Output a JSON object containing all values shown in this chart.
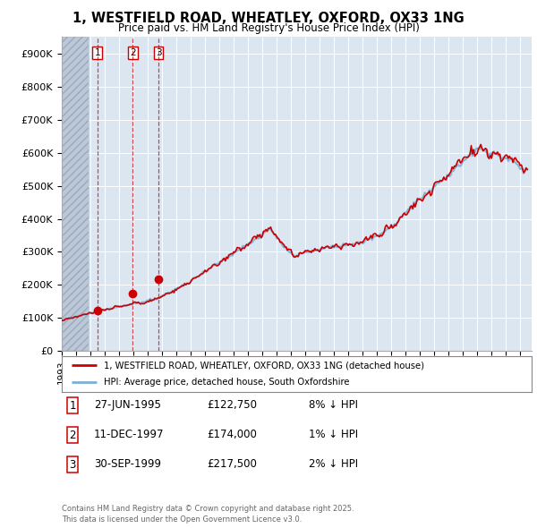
{
  "title_line1": "1, WESTFIELD ROAD, WHEATLEY, OXFORD, OX33 1NG",
  "title_line2": "Price paid vs. HM Land Registry's House Price Index (HPI)",
  "property_label": "1, WESTFIELD ROAD, WHEATLEY, OXFORD, OX33 1NG (detached house)",
  "hpi_label": "HPI: Average price, detached house, South Oxfordshire",
  "sale_year_floats": [
    1995.49,
    1997.95,
    1999.75
  ],
  "sale_prices": [
    122750,
    174000,
    217500
  ],
  "sale_labels": [
    "1",
    "2",
    "3"
  ],
  "sale_info": [
    [
      "1",
      "27-JUN-1995",
      "£122,750",
      "8% ↓ HPI"
    ],
    [
      "2",
      "11-DEC-1997",
      "£174,000",
      "1% ↓ HPI"
    ],
    [
      "3",
      "30-SEP-1999",
      "£217,500",
      "2% ↓ HPI"
    ]
  ],
  "footnote": "Contains HM Land Registry data © Crown copyright and database right 2025.\nThis data is licensed under the Open Government Licence v3.0.",
  "ylim": [
    0,
    950000
  ],
  "yticks": [
    0,
    100000,
    200000,
    300000,
    400000,
    500000,
    600000,
    700000,
    800000,
    900000
  ],
  "property_color": "#cc0000",
  "hpi_color": "#7bafd4",
  "background_color": "#ffffff",
  "plot_bg_color": "#dce6f1",
  "grid_color": "#ffffff",
  "hatch_color": "#bcc8d8",
  "xlim_start": 1993.0,
  "xlim_end": 2025.8
}
